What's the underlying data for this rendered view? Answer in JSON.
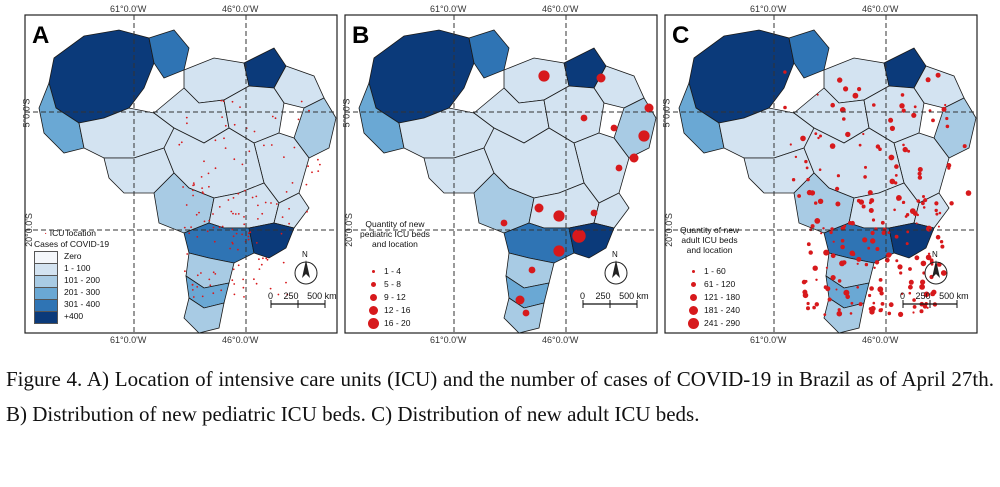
{
  "graticule": {
    "lon_left": "61°0.0'W",
    "lon_right": "46°0.0'W",
    "lat_top": "5°0.0'S",
    "lat_bottom": "20°0.0'S"
  },
  "panels": [
    {
      "letter": "A",
      "legend_title_lines": [
        "Cases of COVID-19"
      ],
      "marker_label": "ICU location",
      "legend_classes": [
        {
          "label": "Zero",
          "color": "#f4f7fb"
        },
        {
          "label": "1 - 100",
          "color": "#d3e3f1"
        },
        {
          "label": "101 - 200",
          "color": "#a8cbe4"
        },
        {
          "label": "201 - 300",
          "color": "#6aa8d4"
        },
        {
          "label": "301 - 400",
          "color": "#2f74b4"
        },
        {
          "label": "+400",
          "color": "#0b3a7a"
        }
      ]
    },
    {
      "letter": "B",
      "legend_title_lines": [
        "Quantity of new",
        "pediatric ICU beds",
        "and location"
      ],
      "legend_classes": [
        {
          "label": "1 - 4"
        },
        {
          "label": "5 - 8"
        },
        {
          "label": "9 - 12"
        },
        {
          "label": "12 - 16"
        },
        {
          "label": "16 - 20"
        }
      ]
    },
    {
      "letter": "C",
      "legend_title_lines": [
        "Quantity of new",
        "adult ICU beds",
        "and location"
      ],
      "legend_classes": [
        {
          "label": "1 - 60"
        },
        {
          "label": "61 - 120"
        },
        {
          "label": "121 - 180"
        },
        {
          "label": "181 - 240"
        },
        {
          "label": "241 - 290"
        }
      ]
    }
  ],
  "north_label": "N",
  "scale_bar": {
    "ticks": [
      "0",
      "250",
      "500 km"
    ]
  },
  "colors": {
    "marker": "#d7191c",
    "state_border": "#1a1a1a"
  },
  "caption": "Figure 4. A) Location of intensive care units (ICU) and the number of cases of COVID-19 in Brazil as of April 27th. B) Distribution of new pediatric ICU beds. C) Distribution of new adult ICU beds."
}
